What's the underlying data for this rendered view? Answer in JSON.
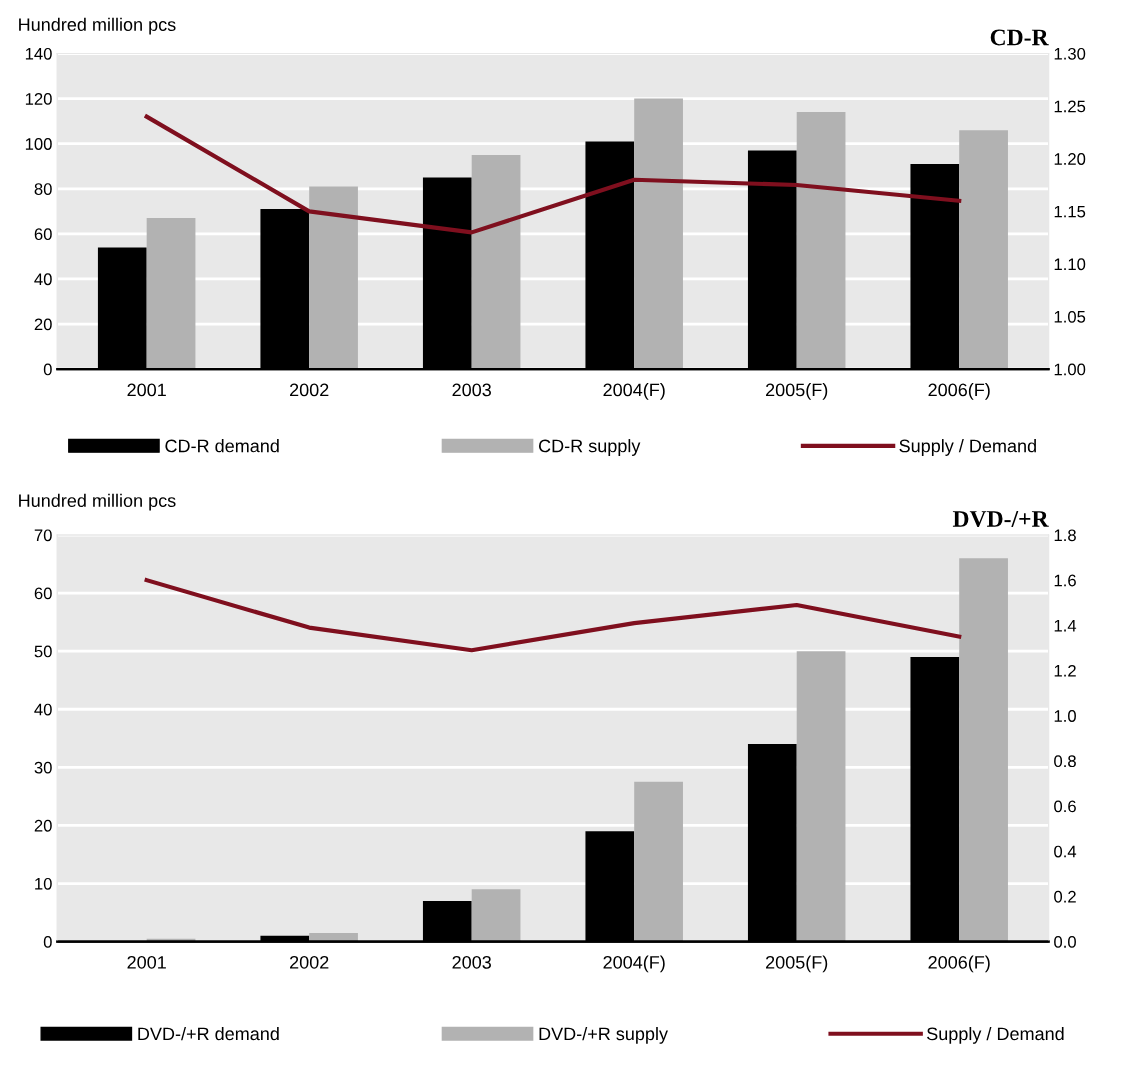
{
  "chart_data": [
    {
      "type": "bar",
      "title": "CD-R",
      "ylabel": "Hundred million pcs",
      "categories": [
        "2001",
        "2002",
        "2003",
        "2004(F)",
        "2005(F)",
        "2006(F)"
      ],
      "series": [
        {
          "name": "CD-R demand",
          "color": "#000000",
          "values": [
            54,
            71,
            85,
            101,
            97,
            91
          ]
        },
        {
          "name": "CD-R supply",
          "color": "#b2b2b2",
          "values": [
            67,
            81,
            95,
            120,
            114,
            106
          ]
        },
        {
          "name": "Supply / Demand",
          "type": "line",
          "axis": "y2",
          "color": "#7f0f1e",
          "values": [
            1.24,
            1.15,
            1.13,
            1.18,
            1.175,
            1.16
          ]
        }
      ],
      "ylim": [
        0,
        140
      ],
      "yticks": [
        0,
        20,
        40,
        60,
        80,
        100,
        120,
        140
      ],
      "y2lim": [
        1.0,
        1.3
      ],
      "y2ticks": [
        {
          "value": 1.0,
          "label": "1.00"
        },
        {
          "value": 1.05,
          "label": "1.05"
        },
        {
          "value": 1.1,
          "label": "1.10"
        },
        {
          "value": 1.15,
          "label": "1.15"
        },
        {
          "value": 1.2,
          "label": "1.20"
        },
        {
          "value": 1.25,
          "label": "1.25"
        },
        {
          "value": 1.3,
          "label": "1.30"
        }
      ],
      "grid": "y",
      "legend": "bottom",
      "marker": "none",
      "line_style": "solid"
    },
    {
      "type": "bar",
      "title": "DVD-/+R",
      "ylabel": "Hundred million pcs",
      "categories": [
        "2001",
        "2002",
        "2003",
        "2004(F)",
        "2005(F)",
        "2006(F)"
      ],
      "series": [
        {
          "name": "DVD-/+R demand",
          "color": "#000000",
          "values": [
            0,
            1,
            7,
            19,
            34,
            49
          ]
        },
        {
          "name": "DVD-/+R supply",
          "color": "#b2b2b2",
          "values": [
            0.5,
            1.5,
            9,
            27.5,
            50,
            66
          ]
        },
        {
          "name": "Supply / Demand",
          "type": "line",
          "axis": "y2",
          "color": "#7f0f1e",
          "values": [
            1.6,
            1.39,
            1.29,
            1.41,
            1.49,
            1.35
          ]
        }
      ],
      "ylim": [
        0,
        70
      ],
      "yticks": [
        0,
        10,
        20,
        30,
        40,
        50,
        60,
        70
      ],
      "y2lim": [
        0.0,
        1.8
      ],
      "y2ticks": [
        {
          "value": 0.0,
          "label": "0.0"
        },
        {
          "value": 0.2,
          "label": "0.2"
        },
        {
          "value": 0.4,
          "label": "0.4"
        },
        {
          "value": 0.6,
          "label": "0.6"
        },
        {
          "value": 0.8,
          "label": "0.8"
        },
        {
          "value": 1.0,
          "label": "1.0"
        },
        {
          "value": 1.2,
          "label": "1.2"
        },
        {
          "value": 1.4,
          "label": "1.4"
        },
        {
          "value": 1.6,
          "label": "1.6"
        },
        {
          "value": 1.8,
          "label": "1.8"
        }
      ],
      "grid": "y",
      "legend": "bottom",
      "marker": "none",
      "line_style": "solid"
    }
  ]
}
